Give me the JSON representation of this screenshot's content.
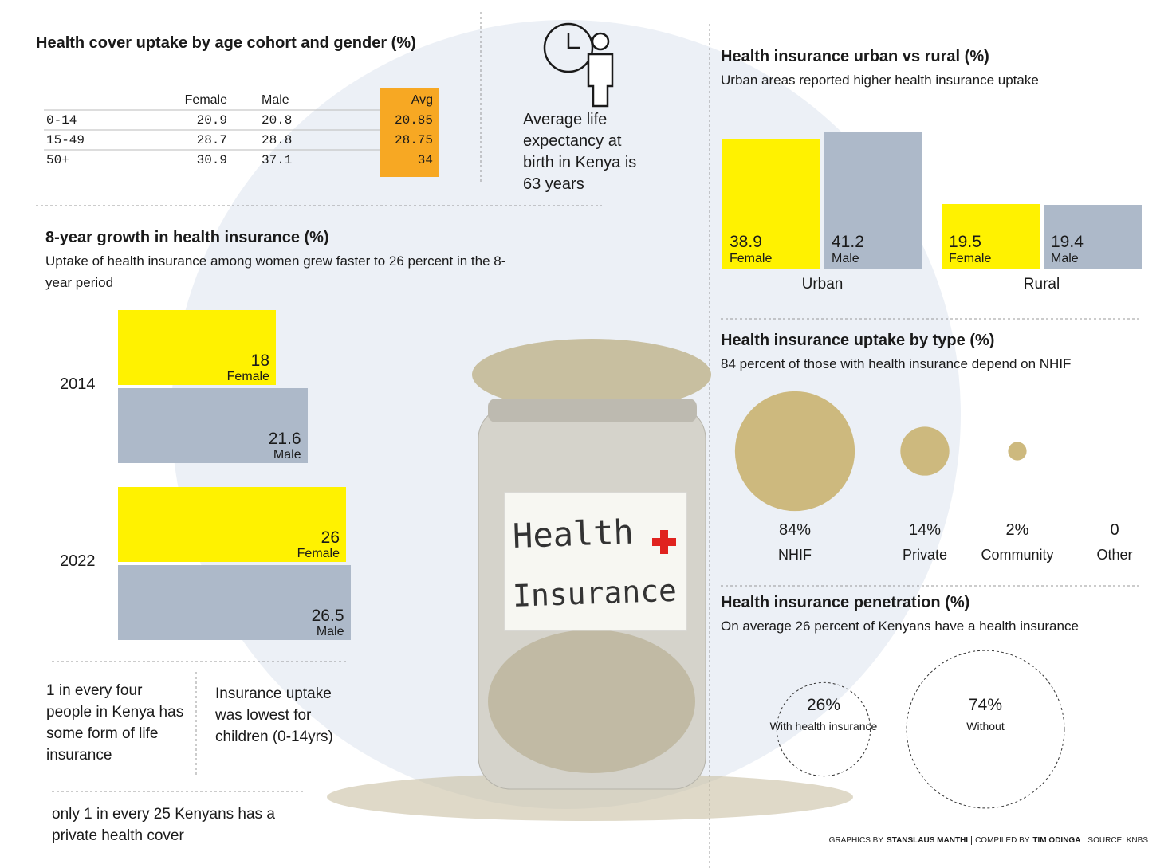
{
  "age_table": {
    "title": "Health cover uptake by age cohort and gender (%)",
    "columns": [
      "Female",
      "Male",
      "Avg"
    ],
    "rows": [
      {
        "label": "0-14",
        "values": [
          20.9,
          20.8,
          20.85
        ]
      },
      {
        "label": "15-49",
        "values": [
          28.7,
          28.8,
          28.75
        ]
      },
      {
        "label": "50+",
        "values": [
          30.9,
          37.1,
          34
        ]
      }
    ]
  },
  "life_expectancy": "Average life expectancy at birth in Kenya is 63 years",
  "photo_label": {
    "line1": "Health",
    "line2": "Insurance"
  },
  "chart_data": [
    {
      "type": "bar",
      "orientation": "horizontal",
      "title": "8-year growth in health insurance (%)",
      "subtitle": "Uptake of health insurance among women grew faster to 26 percent in the 8-year period",
      "categories": [
        "2014",
        "2022"
      ],
      "series": [
        {
          "name": "Female",
          "color": "#fff200",
          "values": [
            18,
            26
          ]
        },
        {
          "name": "Male",
          "color": "#adb9c9",
          "values": [
            21.6,
            26.5
          ]
        }
      ]
    },
    {
      "type": "bar",
      "orientation": "vertical",
      "title": "Health insurance urban vs rural (%)",
      "subtitle": "Urban areas reported higher health insurance uptake",
      "categories": [
        "Urban",
        "Rural"
      ],
      "series": [
        {
          "name": "Female",
          "color": "#fff200",
          "values": [
            38.9,
            19.5
          ]
        },
        {
          "name": "Male",
          "color": "#adb9c9",
          "values": [
            41.2,
            19.4
          ]
        }
      ]
    },
    {
      "type": "bubble",
      "title": "Health insurance uptake by type (%)",
      "subtitle": "84 percent of those with health insurance depend on NHIF",
      "categories": [
        "NHIF",
        "Private",
        "Community",
        "Other"
      ],
      "values": [
        84,
        14,
        2,
        0
      ],
      "value_labels": [
        "84%",
        "14%",
        "2%",
        "0"
      ],
      "color": "#cdb97e"
    },
    {
      "type": "bubble",
      "outline": true,
      "title": "Health insurance penetration (%)",
      "subtitle": "On average 26 percent of Kenyans have a health insurance",
      "categories": [
        "With health insurance",
        "Without"
      ],
      "values": [
        26,
        74
      ],
      "value_labels": [
        "26%",
        "74%"
      ],
      "color": "#333333"
    }
  ],
  "notes": [
    "1 in every four people in Kenya has some form of life insurance",
    "Insurance uptake was lowest for children (0-14yrs)",
    "only 1 in every 25 Kenyans has a private health cover"
  ],
  "credits": {
    "graphics_label": "GRAPHICS BY",
    "graphics": "STANSLAUS MANTHI",
    "compiled_label": "COMPILED BY",
    "compiled": "TIM ODINGA",
    "source": "SOURCE: KNBS"
  }
}
